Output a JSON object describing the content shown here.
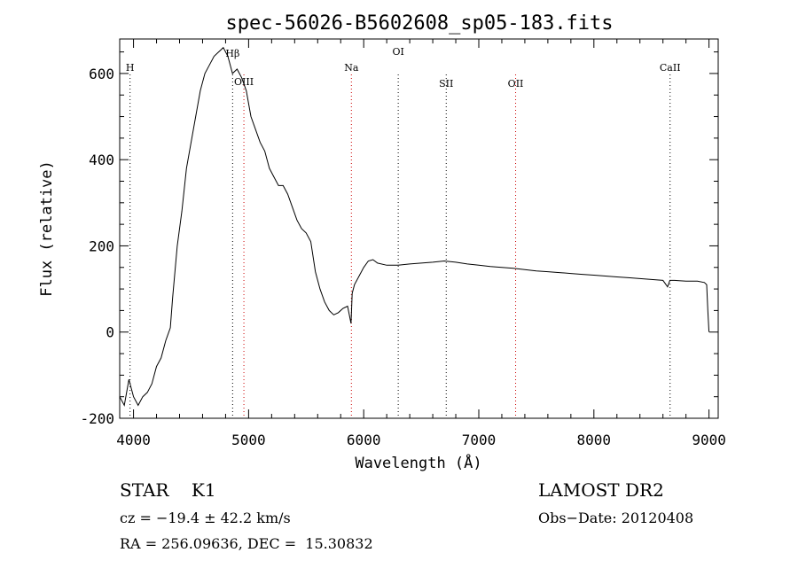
{
  "chart_data": {
    "type": "line",
    "title": "spec-56026-B5602608_sp05-183.fits",
    "xlabel": "Wavelength (Å)",
    "ylabel": "Flux (relative)",
    "xlim": [
      3880,
      9080
    ],
    "ylim": [
      -200,
      680
    ],
    "x_ticks": [
      4000,
      5000,
      6000,
      7000,
      8000,
      9000
    ],
    "y_ticks": [
      -200,
      0,
      200,
      400,
      600
    ],
    "grid": false,
    "legend": "none",
    "series": [
      {
        "color": "#000000",
        "x": [
          3880,
          3920,
          3960,
          4000,
          4040,
          4080,
          4120,
          4160,
          4200,
          4240,
          4280,
          4320,
          4340,
          4380,
          4420,
          4460,
          4500,
          4540,
          4580,
          4620,
          4660,
          4700,
          4740,
          4780,
          4820,
          4860,
          4900,
          4940,
          4980,
          5020,
          5060,
          5100,
          5140,
          5180,
          5220,
          5260,
          5300,
          5340,
          5380,
          5420,
          5460,
          5500,
          5540,
          5580,
          5620,
          5660,
          5700,
          5740,
          5780,
          5820,
          5860,
          5890,
          5900,
          5920,
          5960,
          6000,
          6040,
          6080,
          6120,
          6200,
          6300,
          6400,
          6500,
          6600,
          6700,
          6800,
          6900,
          7000,
          7100,
          7200,
          7300,
          7400,
          7500,
          7600,
          7700,
          7800,
          7900,
          8000,
          8100,
          8200,
          8300,
          8400,
          8500,
          8600,
          8640,
          8660,
          8700,
          8800,
          8900,
          8960,
          8980,
          8990,
          9000
        ],
        "y": [
          -150,
          -170,
          -110,
          -150,
          -170,
          -150,
          -140,
          -120,
          -80,
          -60,
          -20,
          10,
          80,
          200,
          280,
          380,
          440,
          500,
          560,
          600,
          620,
          640,
          650,
          660,
          640,
          600,
          610,
          590,
          560,
          500,
          470,
          440,
          420,
          380,
          360,
          340,
          340,
          320,
          290,
          260,
          240,
          230,
          210,
          140,
          100,
          70,
          50,
          40,
          45,
          55,
          60,
          20,
          90,
          110,
          130,
          150,
          165,
          168,
          160,
          155,
          155,
          158,
          160,
          162,
          165,
          162,
          158,
          155,
          152,
          150,
          148,
          145,
          142,
          140,
          138,
          136,
          134,
          132,
          130,
          128,
          126,
          124,
          122,
          120,
          105,
          120,
          120,
          118,
          118,
          115,
          110,
          50,
          0
        ]
      }
    ],
    "line_markers": [
      {
        "label": "H",
        "x": 3970
      },
      {
        "label": "Hβ",
        "x": 4861
      },
      {
        "label": "OIII",
        "x": 4959
      },
      {
        "label": "Na",
        "x": 5893
      },
      {
        "label": "OI",
        "x": 6300
      },
      {
        "label": "SII",
        "x": 6717
      },
      {
        "label": "OII",
        "x": 7320
      },
      {
        "label": "CaII",
        "x": 8662
      }
    ]
  },
  "info": {
    "class_label": "STAR",
    "subclass_label": "K1",
    "cz": "cz = −19.4 ± 42.2 km/s",
    "coords": "RA = 256.09636, DEC =  15.30832",
    "survey": "LAMOST DR2",
    "obs_date": "Obs−Date: 20120408"
  }
}
